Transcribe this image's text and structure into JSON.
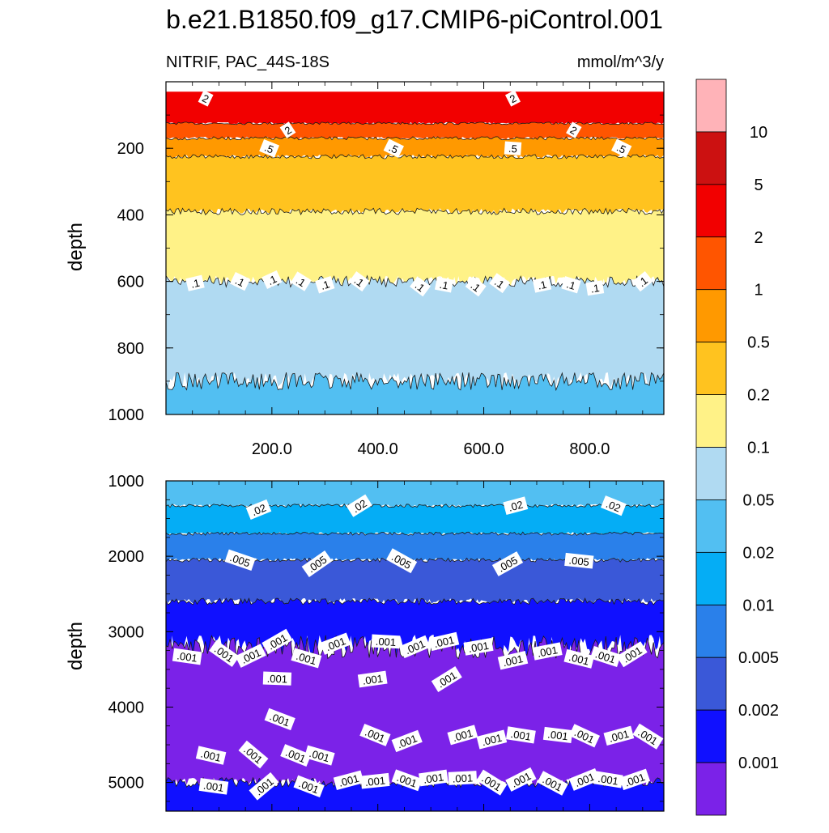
{
  "chart_data": {
    "type": "contour",
    "title": "b.e21.B1850.f09_g17.CMIP6-piControl.001",
    "variable_label": "NITRIF, PAC_44S-18S",
    "units_label": "mmol/m^3/y",
    "xlabel": "",
    "ylabel": "depth",
    "xlim": [
      0,
      940
    ],
    "x_ticks": [
      "200.0",
      "400.0",
      "600.0",
      "800.0"
    ],
    "x_tick_values": [
      200,
      400,
      600,
      800
    ],
    "top_panel": {
      "ylim": [
        0,
        1000
      ],
      "y_ticks": [
        "200",
        "400",
        "600",
        "800",
        "1000"
      ],
      "y_tick_values": [
        200,
        400,
        600,
        800,
        1000
      ],
      "bands": [
        {
          "from": 30,
          "to": 125,
          "range": "2-5"
        },
        {
          "from": 125,
          "to": 170,
          "range": "1-2"
        },
        {
          "from": 170,
          "to": 225,
          "range": "0.5-1"
        },
        {
          "from": 225,
          "to": 390,
          "range": "0.2-0.5"
        },
        {
          "from": 390,
          "to": 600,
          "range": "0.1-0.2"
        },
        {
          "from": 600,
          "to": 900,
          "range": "0.05-0.1"
        },
        {
          "from": 900,
          "to": 1000,
          "range": "0.02-0.05"
        }
      ],
      "contour_labels": [
        {
          "text": "2",
          "x": 75,
          "y": 50
        },
        {
          "text": "2",
          "x": 655,
          "y": 50
        },
        {
          "text": "2",
          "x": 230,
          "y": 145
        },
        {
          "text": "2",
          "x": 770,
          "y": 145
        },
        {
          "text": ".5",
          "x": 195,
          "y": 200
        },
        {
          "text": ".5",
          "x": 430,
          "y": 200
        },
        {
          "text": ".5",
          "x": 655,
          "y": 200
        },
        {
          "text": ".5",
          "x": 860,
          "y": 200
        },
        {
          "text": ".1",
          "x": 55,
          "y": 605
        },
        {
          "text": ".1",
          "x": 140,
          "y": 600
        },
        {
          "text": ".1",
          "x": 200,
          "y": 595
        },
        {
          "text": ".1",
          "x": 255,
          "y": 600
        },
        {
          "text": ".1",
          "x": 300,
          "y": 610
        },
        {
          "text": ".1",
          "x": 365,
          "y": 600
        },
        {
          "text": ".1",
          "x": 480,
          "y": 615
        },
        {
          "text": ".1",
          "x": 525,
          "y": 610
        },
        {
          "text": ".1",
          "x": 585,
          "y": 615
        },
        {
          "text": ".1",
          "x": 630,
          "y": 605
        },
        {
          "text": ".1",
          "x": 710,
          "y": 610
        },
        {
          "text": ".1",
          "x": 765,
          "y": 610
        },
        {
          "text": ".1",
          "x": 810,
          "y": 620
        },
        {
          "text": ".1",
          "x": 900,
          "y": 600
        }
      ]
    },
    "bottom_panel": {
      "ylim": [
        1000,
        5380
      ],
      "y_ticks": [
        "1000",
        "2000",
        "3000",
        "4000",
        "5000"
      ],
      "y_tick_values": [
        1000,
        2000,
        3000,
        4000,
        5000
      ],
      "bands": [
        {
          "from": 1000,
          "to": 1330,
          "range": "0.02-0.05"
        },
        {
          "from": 1330,
          "to": 1700,
          "range": "0.01-0.02"
        },
        {
          "from": 1700,
          "to": 2050,
          "range": "0.005-0.01"
        },
        {
          "from": 2050,
          "to": 2600,
          "range": "0.002-0.005"
        },
        {
          "from": 2600,
          "to": 3200,
          "range": "0.001-0.002"
        },
        {
          "from": 3200,
          "to": 5000,
          "range": "<0.001"
        },
        {
          "from": 5000,
          "to": 5380,
          "range": "0.001-0.002"
        }
      ],
      "contour_labels": [
        {
          "text": ".02",
          "x": 175,
          "y": 1380
        },
        {
          "text": ".02",
          "x": 365,
          "y": 1330
        },
        {
          "text": ".02",
          "x": 660,
          "y": 1330
        },
        {
          "text": ".02",
          "x": 845,
          "y": 1330
        },
        {
          "text": ".005",
          "x": 140,
          "y": 2050
        },
        {
          "text": ".005",
          "x": 285,
          "y": 2100
        },
        {
          "text": ".005",
          "x": 445,
          "y": 2060
        },
        {
          "text": ".005",
          "x": 645,
          "y": 2100
        },
        {
          "text": ".005",
          "x": 780,
          "y": 2060
        },
        {
          "text": ".001",
          "x": 40,
          "y": 3330
        },
        {
          "text": ".001",
          "x": 110,
          "y": 3290
        },
        {
          "text": ".001",
          "x": 160,
          "y": 3320
        },
        {
          "text": ".001",
          "x": 210,
          "y": 3130
        },
        {
          "text": ".001",
          "x": 265,
          "y": 3350
        },
        {
          "text": ".001",
          "x": 320,
          "y": 3160
        },
        {
          "text": ".001",
          "x": 415,
          "y": 3130
        },
        {
          "text": ".001",
          "x": 470,
          "y": 3200
        },
        {
          "text": ".001",
          "x": 525,
          "y": 3130
        },
        {
          "text": ".001",
          "x": 590,
          "y": 3200
        },
        {
          "text": ".001",
          "x": 655,
          "y": 3380
        },
        {
          "text": ".001",
          "x": 720,
          "y": 3260
        },
        {
          "text": ".001",
          "x": 780,
          "y": 3360
        },
        {
          "text": ".001",
          "x": 830,
          "y": 3330
        },
        {
          "text": ".001",
          "x": 880,
          "y": 3300
        },
        {
          "text": ".001",
          "x": 210,
          "y": 3620
        },
        {
          "text": ".001",
          "x": 390,
          "y": 3630
        },
        {
          "text": ".001",
          "x": 530,
          "y": 3630
        },
        {
          "text": ".001",
          "x": 215,
          "y": 4160
        },
        {
          "text": ".001",
          "x": 395,
          "y": 4370
        },
        {
          "text": ".001",
          "x": 455,
          "y": 4450
        },
        {
          "text": ".001",
          "x": 560,
          "y": 4370
        },
        {
          "text": ".001",
          "x": 615,
          "y": 4430
        },
        {
          "text": ".001",
          "x": 670,
          "y": 4370
        },
        {
          "text": ".001",
          "x": 740,
          "y": 4370
        },
        {
          "text": ".001",
          "x": 790,
          "y": 4380
        },
        {
          "text": ".001",
          "x": 855,
          "y": 4380
        },
        {
          "text": ".001",
          "x": 910,
          "y": 4390
        },
        {
          "text": ".001",
          "x": 85,
          "y": 4640
        },
        {
          "text": ".001",
          "x": 165,
          "y": 4630
        },
        {
          "text": ".001",
          "x": 245,
          "y": 4640
        },
        {
          "text": ".001",
          "x": 290,
          "y": 4640
        },
        {
          "text": ".001",
          "x": 345,
          "y": 4970
        },
        {
          "text": ".001",
          "x": 395,
          "y": 4980
        },
        {
          "text": ".001",
          "x": 455,
          "y": 4970
        },
        {
          "text": ".001",
          "x": 505,
          "y": 4940
        },
        {
          "text": ".001",
          "x": 560,
          "y": 4940
        },
        {
          "text": ".001",
          "x": 615,
          "y": 5000
        },
        {
          "text": ".001",
          "x": 670,
          "y": 4960
        },
        {
          "text": ".001",
          "x": 730,
          "y": 5010
        },
        {
          "text": ".001",
          "x": 790,
          "y": 4960
        },
        {
          "text": ".001",
          "x": 835,
          "y": 4960
        },
        {
          "text": ".001",
          "x": 885,
          "y": 4960
        },
        {
          "text": ".001",
          "x": 90,
          "y": 5050
        },
        {
          "text": ".001",
          "x": 185,
          "y": 5050
        },
        {
          "text": ".001",
          "x": 270,
          "y": 5050
        }
      ]
    },
    "colorbar": {
      "colors": [
        "#ffb3b8",
        "#cc1111",
        "#f20000",
        "#ff5500",
        "#ff9900",
        "#ffc31f",
        "#fff287",
        "#b0daf2",
        "#52bff2",
        "#05adf5",
        "#2a80ea",
        "#3a58d8",
        "#1010ff",
        "#7b22e8"
      ],
      "labels": [
        "10",
        "5",
        "2",
        "1",
        "0.5",
        "0.2",
        "0.1",
        "0.05",
        "0.02",
        "0.01",
        "0.005",
        "0.002",
        "0.001"
      ]
    }
  }
}
